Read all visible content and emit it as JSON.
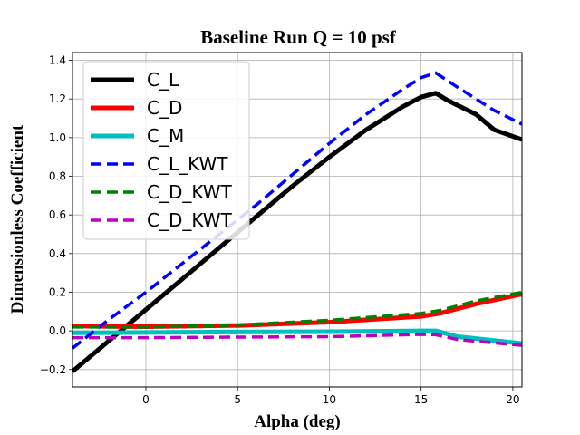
{
  "chart_data": {
    "type": "line",
    "title": "Baseline Run Q = 10 psf",
    "xlabel": "Alpha (deg)",
    "ylabel": "Dimensionless Coefficient",
    "xlim": [
      -4,
      20.5
    ],
    "ylim": [
      -0.29,
      1.44
    ],
    "xticks": [
      0,
      5,
      10,
      15,
      20
    ],
    "yticks": [
      -0.2,
      0.0,
      0.2,
      0.4,
      0.6,
      0.8,
      1.0,
      1.2,
      1.4
    ],
    "ytick_labels": [
      "−0.2",
      "0.0",
      "0.2",
      "0.4",
      "0.6",
      "0.8",
      "1.0",
      "1.2",
      "1.4"
    ],
    "grid": true,
    "legend_position": "upper-left",
    "series": [
      {
        "name": "C_L",
        "color": "#000000",
        "style": "solid",
        "width": "thick",
        "x": [
          -4,
          -2,
          0,
          2,
          4,
          6,
          8,
          10,
          12,
          13,
          14,
          15,
          15.8,
          16.5,
          18,
          19,
          20.5
        ],
        "y": [
          -0.21,
          -0.05,
          0.11,
          0.27,
          0.43,
          0.59,
          0.75,
          0.9,
          1.04,
          1.1,
          1.16,
          1.21,
          1.23,
          1.19,
          1.12,
          1.04,
          0.99
        ]
      },
      {
        "name": "C_D",
        "color": "#ff0000",
        "style": "solid",
        "width": "thick",
        "x": [
          -4,
          0,
          5,
          10,
          15,
          16,
          18,
          20.5
        ],
        "y": [
          0.025,
          0.022,
          0.028,
          0.045,
          0.075,
          0.09,
          0.14,
          0.19
        ]
      },
      {
        "name": "C_M",
        "color": "#00bfbf",
        "style": "solid",
        "width": "thick",
        "x": [
          -4,
          0,
          5,
          10,
          15,
          15.8,
          17,
          20.5
        ],
        "y": [
          -0.01,
          -0.008,
          -0.006,
          -0.004,
          0.0,
          0.0,
          -0.03,
          -0.065
        ]
      },
      {
        "name": "C_L_KWT",
        "color": "#0000ff",
        "style": "dashed",
        "width": "medium",
        "x": [
          -4,
          -2,
          0,
          2,
          4,
          6,
          8,
          10,
          12,
          14,
          15,
          15.8,
          17,
          19,
          20.5
        ],
        "y": [
          -0.09,
          0.06,
          0.2,
          0.35,
          0.5,
          0.65,
          0.81,
          0.97,
          1.12,
          1.25,
          1.31,
          1.335,
          1.26,
          1.14,
          1.07
        ]
      },
      {
        "name": "C_D_KWT",
        "color": "#008000",
        "style": "dashed",
        "width": "medium",
        "x": [
          -4,
          0,
          5,
          10,
          15,
          16,
          18,
          20.5
        ],
        "y": [
          0.02,
          0.02,
          0.03,
          0.055,
          0.09,
          0.105,
          0.155,
          0.2
        ]
      },
      {
        "name": "C_D_KWT",
        "color": "#bf00bf",
        "style": "dashed",
        "width": "medium",
        "x": [
          -4,
          0,
          5,
          10,
          15,
          15.8,
          17,
          20.5
        ],
        "y": [
          -0.035,
          -0.035,
          -0.032,
          -0.03,
          -0.018,
          -0.02,
          -0.045,
          -0.075
        ]
      }
    ]
  }
}
